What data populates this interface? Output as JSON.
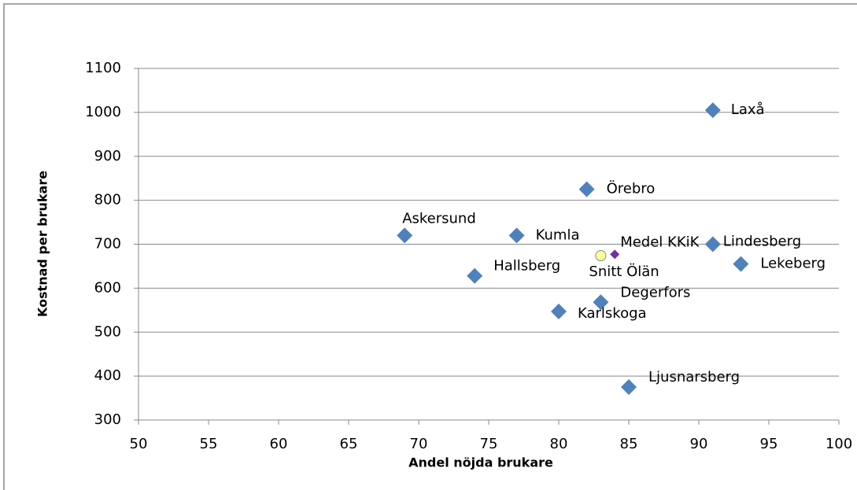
{
  "chart_data": {
    "type": "scatter",
    "xlabel": "Andel nöjda brukare",
    "ylabel": "Kostnad per brukare",
    "xlim": [
      50,
      100
    ],
    "xticks": [
      50,
      55,
      60,
      65,
      70,
      75,
      80,
      85,
      90,
      95,
      100
    ],
    "ylim": [
      300,
      1100
    ],
    "yticks": [
      300,
      400,
      500,
      600,
      700,
      800,
      900,
      1000,
      1100
    ],
    "grid": true,
    "points": [
      {
        "label": "Laxå",
        "x": 91,
        "y": 1005,
        "marker": "diamond",
        "color": "#4f81bd"
      },
      {
        "label": "Örebro",
        "x": 82,
        "y": 825,
        "marker": "diamond",
        "color": "#4f81bd"
      },
      {
        "label": "Askersund",
        "x": 69,
        "y": 720,
        "marker": "diamond",
        "color": "#4f81bd"
      },
      {
        "label": "Kumla",
        "x": 77,
        "y": 720,
        "marker": "diamond",
        "color": "#4f81bd"
      },
      {
        "label": "Lindesberg",
        "x": 91,
        "y": 700,
        "marker": "diamond",
        "color": "#4f81bd"
      },
      {
        "label": "Lekeberg",
        "x": 93,
        "y": 655,
        "marker": "diamond",
        "color": "#4f81bd"
      },
      {
        "label": "Hallsberg",
        "x": 74,
        "y": 628,
        "marker": "diamond",
        "color": "#4f81bd"
      },
      {
        "label": "Degerfors",
        "x": 83,
        "y": 568,
        "marker": "diamond",
        "color": "#4f81bd"
      },
      {
        "label": "Karlskoga",
        "x": 80,
        "y": 547,
        "marker": "diamond",
        "color": "#4f81bd"
      },
      {
        "label": "Ljusnarsberg",
        "x": 85,
        "y": 375,
        "marker": "diamond",
        "color": "#4f81bd"
      },
      {
        "label": "Medel KKiK",
        "x": 84,
        "y": 677,
        "marker": "small-diamond",
        "color": "#7030a0"
      },
      {
        "label": "Snitt Ölän",
        "x": 83,
        "y": 674,
        "marker": "circle",
        "color": "#ffff99"
      }
    ]
  }
}
